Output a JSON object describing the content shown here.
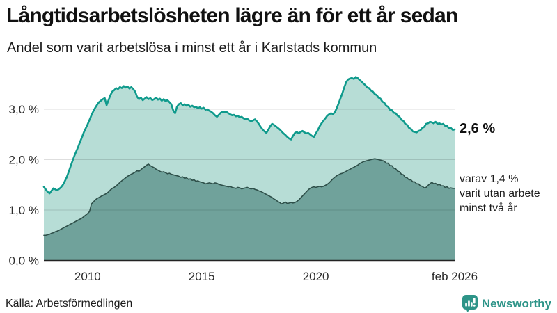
{
  "header": {
    "title": "Långtidsarbetslösheten lägre än för ett år sedan",
    "subtitle": "Andel som varit arbetslösa i minst ett år i Karlstads kommun"
  },
  "annotations": {
    "total_end_label": "2,6 %",
    "two_year_label": "varav 1,4 %\nvarit utan arbete\nminst två år"
  },
  "footer": {
    "source": "Källa: Arbetsförmedlingen",
    "logo_text": "Newsworthy"
  },
  "colors": {
    "accent_teal": "#0f9a8c",
    "light_fill": "#b7ddd6",
    "dark_line": "#2e4f49",
    "dark_fill": "#70a29b",
    "gridline": "rgba(0,0,0,0.13)",
    "baseline": "#222222",
    "tick_text": "#2b2b2b",
    "logo_teal": "#2d9488"
  },
  "chart_data": {
    "type": "area",
    "title": "Långtidsarbetslösheten lägre än för ett år sedan",
    "subtitle": "Andel som varit arbetslösa i minst ett år i Karlstads kommun",
    "unit": "%",
    "frequency": "monthly",
    "x_start": 2008.083,
    "x_end": 2026.083,
    "ylim": [
      0,
      3.8
    ],
    "grid": true,
    "y_ticks": [
      {
        "label": "0,0 %",
        "value": 0
      },
      {
        "label": "1,0 %",
        "value": 1
      },
      {
        "label": "2,0 %",
        "value": 2
      },
      {
        "label": "3,0 %",
        "value": 3
      }
    ],
    "x_ticks": [
      {
        "label": "2010",
        "year": 2010
      },
      {
        "label": "2015",
        "year": 2015
      },
      {
        "label": "2020",
        "year": 2020
      },
      {
        "label": "feb 2026",
        "year": 2026.083
      }
    ],
    "series": [
      {
        "name": "Arbetslösa minst ett år",
        "end_label": "2,6 %",
        "line_color": "#0f9a8c",
        "fill_color": "#b7ddd6",
        "line_width": 2.6,
        "values": [
          1.46,
          1.41,
          1.36,
          1.33,
          1.38,
          1.43,
          1.41,
          1.39,
          1.42,
          1.45,
          1.5,
          1.57,
          1.65,
          1.75,
          1.86,
          1.97,
          2.07,
          2.16,
          2.25,
          2.35,
          2.44,
          2.54,
          2.62,
          2.7,
          2.79,
          2.88,
          2.96,
          3.03,
          3.09,
          3.14,
          3.17,
          3.2,
          3.22,
          3.08,
          3.18,
          3.28,
          3.35,
          3.38,
          3.42,
          3.4,
          3.44,
          3.42,
          3.46,
          3.43,
          3.45,
          3.41,
          3.44,
          3.4,
          3.35,
          3.25,
          3.2,
          3.23,
          3.18,
          3.21,
          3.24,
          3.2,
          3.22,
          3.18,
          3.2,
          3.23,
          3.19,
          3.21,
          3.17,
          3.2,
          3.16,
          3.18,
          3.14,
          3.1,
          2.98,
          2.92,
          3.05,
          3.1,
          3.12,
          3.08,
          3.1,
          3.07,
          3.09,
          3.05,
          3.07,
          3.04,
          3.05,
          3.02,
          3.04,
          3.01,
          3.03,
          2.99,
          3.0,
          2.97,
          2.95,
          2.92,
          2.88,
          2.85,
          2.89,
          2.93,
          2.95,
          2.94,
          2.95,
          2.92,
          2.9,
          2.88,
          2.89,
          2.86,
          2.87,
          2.84,
          2.85,
          2.82,
          2.8,
          2.81,
          2.78,
          2.76,
          2.78,
          2.8,
          2.76,
          2.71,
          2.65,
          2.6,
          2.56,
          2.53,
          2.59,
          2.66,
          2.71,
          2.69,
          2.66,
          2.63,
          2.6,
          2.56,
          2.52,
          2.49,
          2.45,
          2.42,
          2.4,
          2.47,
          2.53,
          2.55,
          2.52,
          2.55,
          2.57,
          2.54,
          2.52,
          2.53,
          2.5,
          2.47,
          2.45,
          2.52,
          2.58,
          2.66,
          2.72,
          2.77,
          2.82,
          2.87,
          2.9,
          2.92,
          2.9,
          2.94,
          3.02,
          3.12,
          3.22,
          3.32,
          3.44,
          3.54,
          3.59,
          3.61,
          3.62,
          3.6,
          3.64,
          3.62,
          3.58,
          3.55,
          3.51,
          3.48,
          3.43,
          3.42,
          3.37,
          3.35,
          3.3,
          3.28,
          3.23,
          3.21,
          3.15,
          3.13,
          3.07,
          3.05,
          2.99,
          2.98,
          2.93,
          2.92,
          2.87,
          2.85,
          2.79,
          2.77,
          2.71,
          2.69,
          2.63,
          2.61,
          2.56,
          2.55,
          2.54,
          2.57,
          2.58,
          2.63,
          2.65,
          2.71,
          2.72,
          2.75,
          2.74,
          2.72,
          2.75,
          2.71,
          2.72,
          2.7,
          2.71,
          2.67,
          2.67,
          2.62,
          2.63,
          2.59,
          2.6
        ]
      },
      {
        "name": "Varav utan arbete minst två år",
        "end_label": "varav 1,4 % varit utan arbete minst två år",
        "line_color": "#2e4f49",
        "fill_color": "#70a29b",
        "line_width": 1.6,
        "values": [
          0.5,
          0.5,
          0.51,
          0.52,
          0.54,
          0.55,
          0.57,
          0.58,
          0.6,
          0.62,
          0.64,
          0.66,
          0.68,
          0.7,
          0.72,
          0.74,
          0.76,
          0.78,
          0.8,
          0.82,
          0.84,
          0.87,
          0.9,
          0.93,
          0.97,
          1.12,
          1.16,
          1.2,
          1.23,
          1.25,
          1.27,
          1.29,
          1.31,
          1.33,
          1.36,
          1.4,
          1.43,
          1.45,
          1.48,
          1.51,
          1.55,
          1.58,
          1.61,
          1.64,
          1.67,
          1.69,
          1.71,
          1.73,
          1.75,
          1.78,
          1.77,
          1.8,
          1.83,
          1.86,
          1.89,
          1.91,
          1.88,
          1.86,
          1.84,
          1.81,
          1.79,
          1.77,
          1.75,
          1.76,
          1.74,
          1.72,
          1.73,
          1.71,
          1.7,
          1.69,
          1.68,
          1.67,
          1.65,
          1.66,
          1.63,
          1.64,
          1.61,
          1.62,
          1.59,
          1.6,
          1.57,
          1.58,
          1.56,
          1.55,
          1.54,
          1.52,
          1.53,
          1.54,
          1.53,
          1.52,
          1.54,
          1.53,
          1.51,
          1.5,
          1.49,
          1.48,
          1.47,
          1.46,
          1.47,
          1.45,
          1.44,
          1.43,
          1.45,
          1.44,
          1.42,
          1.43,
          1.44,
          1.45,
          1.43,
          1.42,
          1.43,
          1.41,
          1.4,
          1.38,
          1.37,
          1.35,
          1.33,
          1.31,
          1.29,
          1.27,
          1.25,
          1.22,
          1.2,
          1.17,
          1.15,
          1.12,
          1.14,
          1.16,
          1.13,
          1.14,
          1.15,
          1.14,
          1.15,
          1.17,
          1.2,
          1.24,
          1.28,
          1.32,
          1.36,
          1.4,
          1.43,
          1.45,
          1.46,
          1.45,
          1.46,
          1.47,
          1.46,
          1.47,
          1.49,
          1.51,
          1.54,
          1.58,
          1.62,
          1.65,
          1.68,
          1.7,
          1.72,
          1.73,
          1.75,
          1.77,
          1.79,
          1.81,
          1.83,
          1.85,
          1.87,
          1.89,
          1.92,
          1.94,
          1.96,
          1.97,
          1.98,
          1.99,
          2.0,
          2.01,
          2.02,
          2.01,
          2.0,
          1.99,
          1.98,
          1.97,
          1.93,
          1.93,
          1.88,
          1.88,
          1.83,
          1.82,
          1.77,
          1.76,
          1.71,
          1.7,
          1.65,
          1.64,
          1.6,
          1.6,
          1.56,
          1.56,
          1.52,
          1.52,
          1.48,
          1.47,
          1.44,
          1.45,
          1.49,
          1.52,
          1.55,
          1.52,
          1.53,
          1.5,
          1.51,
          1.48,
          1.48,
          1.45,
          1.46,
          1.43,
          1.44,
          1.43,
          1.43
        ]
      }
    ]
  }
}
